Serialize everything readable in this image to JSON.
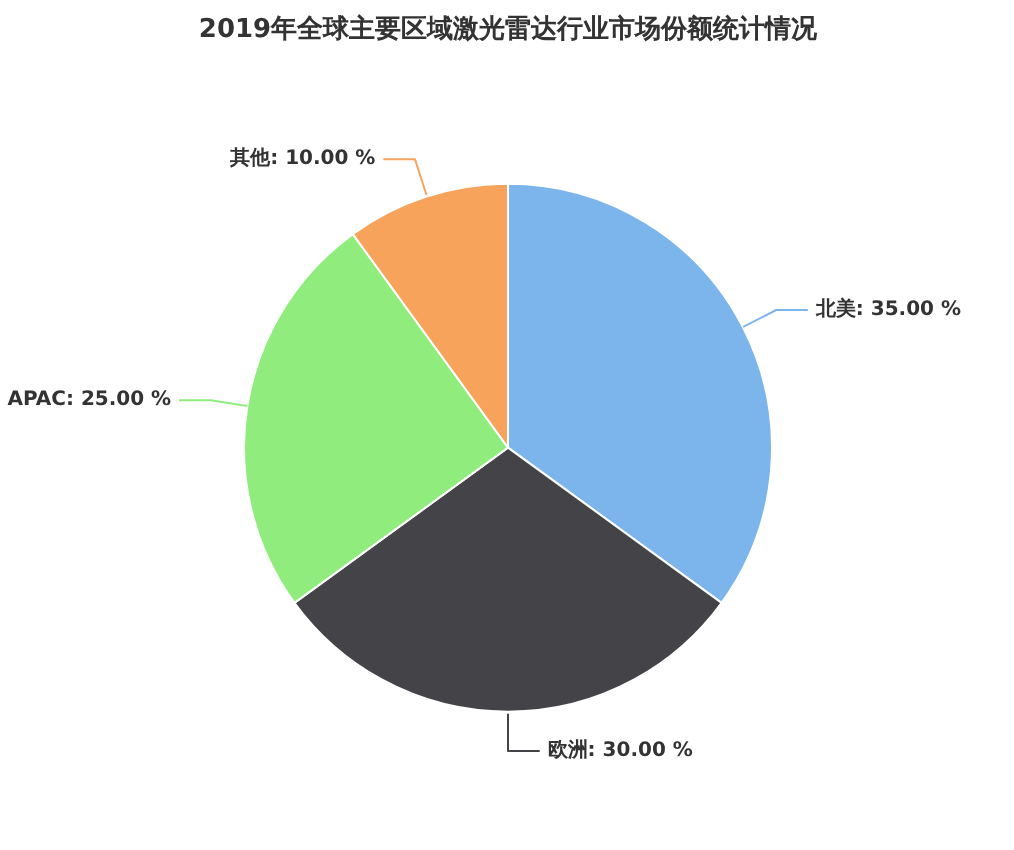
{
  "chart_data": {
    "type": "pie",
    "title": "2019年全球主要区域激光雷达行业市场份额统计情况",
    "categories": [
      "北美",
      "欧洲",
      "APAC",
      "其他"
    ],
    "values": [
      35,
      30,
      25,
      10
    ],
    "colors": [
      "#7cb5ec",
      "#434348",
      "#90ed7d",
      "#f7a35c"
    ],
    "value_labels": [
      "35.00 %",
      "30.00 %",
      "25.00 %",
      "10.00 %"
    ]
  }
}
